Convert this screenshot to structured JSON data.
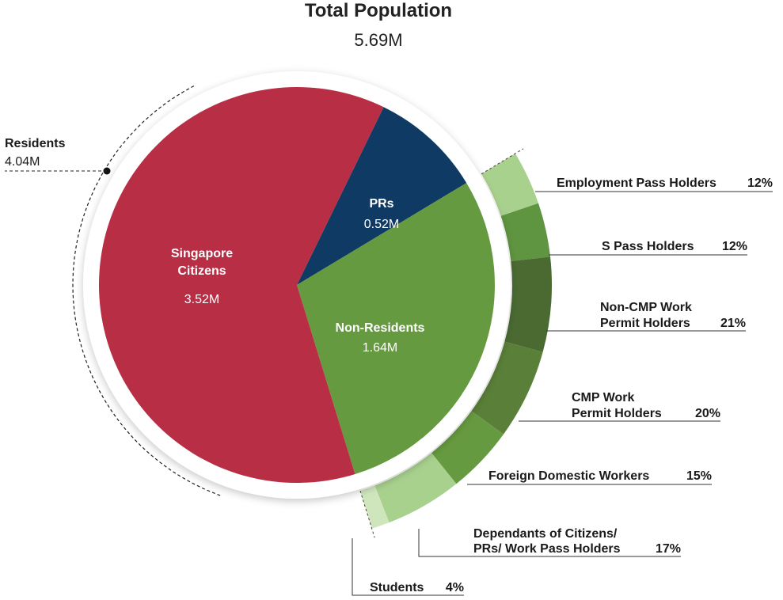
{
  "chart_data": {
    "type": "pie",
    "title": "Total Population",
    "subtitle": "5.69M",
    "pie": {
      "slices": [
        {
          "name_lines": [
            "Singapore",
            "Citizens"
          ],
          "value": 3.52,
          "value_label": "3.52M",
          "color": "#b82e45"
        },
        {
          "name_lines": [
            "PRs"
          ],
          "value": 0.52,
          "value_label": "0.52M",
          "color": "#0f3a63"
        },
        {
          "name_lines": [
            "Non-Residents"
          ],
          "value": 1.64,
          "value_label": "1.64M",
          "color": "#669a40"
        }
      ]
    },
    "residents": {
      "name": "Residents",
      "value": 4.04,
      "value_label": "4.04M"
    },
    "non_resident_breakdown": [
      {
        "name_lines": [
          "Employment Pass Holders"
        ],
        "percent": 12,
        "percent_label": "12%",
        "color": "#a9d18e"
      },
      {
        "name_lines": [
          "S Pass Holders"
        ],
        "percent": 12,
        "percent_label": "12%",
        "color": "#5f9440"
      },
      {
        "name_lines": [
          "Non-CMP Work",
          "Permit Holders"
        ],
        "percent": 21,
        "percent_label": "21%",
        "color": "#4a6a32"
      },
      {
        "name_lines": [
          "CMP Work",
          "Permit Holders"
        ],
        "percent": 20,
        "percent_label": "20%",
        "color": "#5a7f38"
      },
      {
        "name_lines": [
          "Foreign Domestic Workers"
        ],
        "percent": 15,
        "percent_label": "15%",
        "color": "#669a40"
      },
      {
        "name_lines": [
          "Dependants of Citizens/",
          "PRs/ Work Pass Holders"
        ],
        "percent": 17,
        "percent_label": "17%",
        "color": "#a9d18e"
      },
      {
        "name_lines": [
          "Students"
        ],
        "percent": 4,
        "percent_label": "4%",
        "color": "#cfe6bd"
      }
    ]
  }
}
